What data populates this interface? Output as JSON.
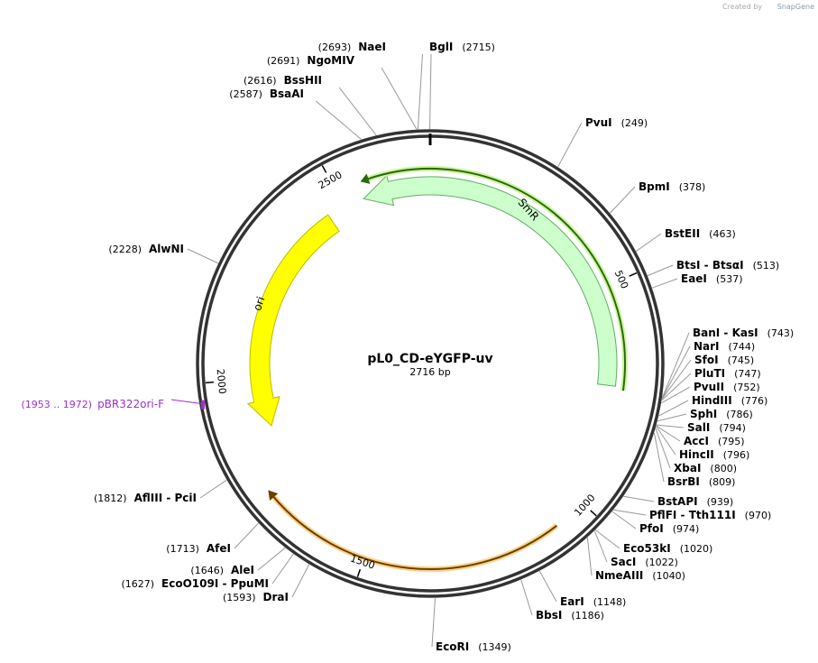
{
  "header": {
    "created_by": "Created by",
    "brand": "SnapGene"
  },
  "map": {
    "name": "pL0_CD-eYGFP-uv",
    "length": "2716 bp",
    "sites": [
      {
        "name": "BglI",
        "position": "(2715)"
      },
      {
        "name": "PvuI",
        "position": "(249)"
      },
      {
        "name": "BpmI",
        "position": "(378)"
      },
      {
        "name": "BstEII",
        "position": "(463)"
      },
      {
        "name": "BtsI - BtsαI",
        "position": "(513)"
      },
      {
        "name": "EaeI",
        "position": "(537)"
      },
      {
        "name": "BanI - KasI",
        "position": "(743)"
      },
      {
        "name": "NarI",
        "position": "(744)"
      },
      {
        "name": "SfoI",
        "position": "(745)"
      },
      {
        "name": "PluTI",
        "position": "(747)"
      },
      {
        "name": "PvuII",
        "position": "(752)"
      },
      {
        "name": "HindIII",
        "position": "(776)"
      },
      {
        "name": "SphI",
        "position": "(786)"
      },
      {
        "name": "SalI",
        "position": "(794)"
      },
      {
        "name": "AccI",
        "position": "(795)"
      },
      {
        "name": "HincII",
        "position": "(796)"
      },
      {
        "name": "XbaI",
        "position": "(800)"
      },
      {
        "name": "BsrBI",
        "position": "(809)"
      },
      {
        "name": "BstAPI",
        "position": "(939)"
      },
      {
        "name": "PflFI - Tth111I",
        "position": "(970)"
      },
      {
        "name": "PfoI",
        "position": "(974)"
      },
      {
        "name": "Eco53kI",
        "position": "(1020)"
      },
      {
        "name": "SacI",
        "position": "(1022)"
      },
      {
        "name": "NmeAIII",
        "position": "(1040)"
      },
      {
        "name": "EarI",
        "position": "(1148)"
      },
      {
        "name": "BbsI",
        "position": "(1186)"
      },
      {
        "name": "EcoRI",
        "position": "(1349)"
      },
      {
        "name": "NaeI",
        "position": "(2693)"
      },
      {
        "name": "NgoMIV",
        "position": "(2691)"
      },
      {
        "name": "BssHII",
        "position": "(2616)"
      },
      {
        "name": "BsaAI",
        "position": "(2587)"
      },
      {
        "name": "AlwNI",
        "position": "(2228)"
      },
      {
        "name": "AflIII - PciI",
        "position": "(1812)"
      },
      {
        "name": "AfeI",
        "position": "(1713)"
      },
      {
        "name": "AleI",
        "position": "(1646)"
      },
      {
        "name": "EcoO109I - PpuMI",
        "position": "(1627)"
      },
      {
        "name": "DraI",
        "position": "(1593)"
      }
    ],
    "features": [
      {
        "label": "SmR"
      },
      {
        "label": "ori"
      }
    ],
    "primer": {
      "range": "(1953 .. 1972)",
      "name": "pBR322ori-F"
    },
    "ticks": [
      "500",
      "1000",
      "1500",
      "2000",
      "2500"
    ]
  }
}
